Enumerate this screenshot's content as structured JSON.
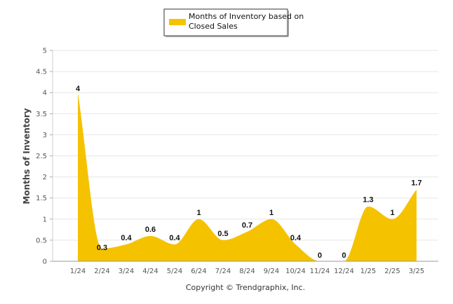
{
  "chart_data": {
    "type": "area",
    "categories": [
      "1/24",
      "2/24",
      "3/24",
      "4/24",
      "5/24",
      "6/24",
      "7/24",
      "8/24",
      "9/24",
      "10/24",
      "11/24",
      "12/24",
      "1/25",
      "2/25",
      "3/25"
    ],
    "series": [
      {
        "name": "Months of Inventory based on Closed Sales",
        "values": [
          4,
          0.3,
          0.4,
          0.6,
          0.4,
          1,
          0.5,
          0.7,
          1,
          0.4,
          0,
          0,
          1.3,
          1,
          1.7
        ],
        "labels": [
          "4",
          "0.3",
          "0.4",
          "0.6",
          "0.4",
          "1",
          "0.5",
          "0.7",
          "1",
          "0.4",
          "0",
          "0",
          "1.3",
          "1",
          "1.7"
        ],
        "color": "#F5C200"
      }
    ],
    "ylabel": "Months of Inventory",
    "xlabel": "",
    "ylim": [
      0,
      5
    ],
    "yticks": [
      "0",
      "0.5",
      "1",
      "1.5",
      "2",
      "2.5",
      "3",
      "3.5",
      "4",
      "4.5",
      "5"
    ],
    "grid": true,
    "legend_position": "top-center",
    "footer": "Copyright © Trendgraphix, Inc."
  }
}
